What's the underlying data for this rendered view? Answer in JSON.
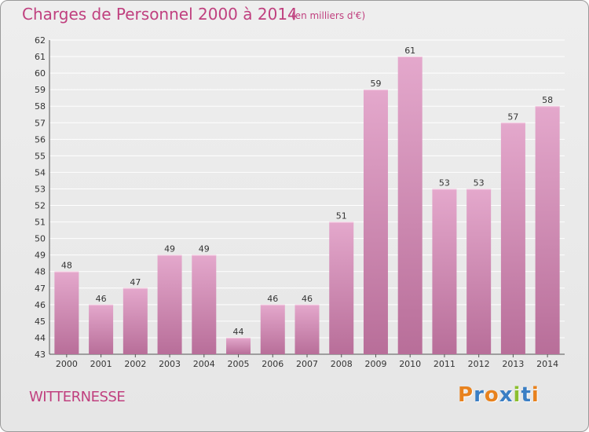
{
  "title": "Charges de Personnel 2000 à 2014",
  "subtitle": "(en milliers d'€)",
  "place": "WITTERNESSE",
  "brand": "Proxiti",
  "colors": {
    "accent": "#c0407f",
    "bar_top": "#e4a8cc",
    "bar_bottom": "#b86e99",
    "grid": "#ffffff",
    "brand_letters": [
      "#e8821e",
      "#3a7ec4",
      "#e8821e",
      "#3a7ec4",
      "#8cbf2f",
      "#3a7ec4",
      "#e8821e"
    ]
  },
  "chart_data": {
    "type": "bar",
    "title": "Charges de Personnel 2000 à 2014",
    "subtitle": "(en milliers d'€)",
    "xlabel": "",
    "ylabel": "",
    "categories": [
      "2000",
      "2001",
      "2002",
      "2003",
      "2004",
      "2005",
      "2006",
      "2007",
      "2008",
      "2009",
      "2010",
      "2011",
      "2012",
      "2013",
      "2014"
    ],
    "values": [
      48,
      46,
      47,
      49,
      49,
      44,
      46,
      46,
      51,
      59,
      61,
      53,
      53,
      57,
      58
    ],
    "ylim": [
      43,
      62
    ],
    "yticks": [
      43,
      44,
      45,
      46,
      47,
      48,
      49,
      50,
      51,
      52,
      53,
      54,
      55,
      56,
      57,
      58,
      59,
      60,
      61,
      62
    ],
    "grid": true,
    "legend": "none"
  }
}
